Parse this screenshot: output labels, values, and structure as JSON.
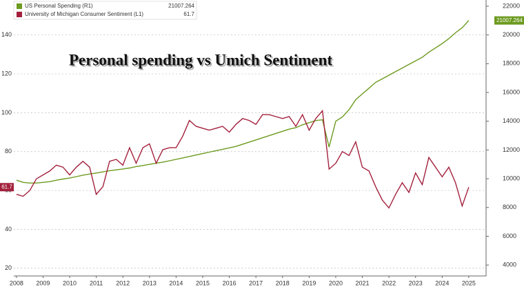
{
  "chart_data": {
    "type": "line",
    "title": "Personal spending vs Umich Sentiment",
    "x": [
      2008.5,
      2008.75,
      2009,
      2009.25,
      2009.5,
      2009.75,
      2010,
      2010.25,
      2010.5,
      2010.75,
      2011,
      2011.25,
      2011.5,
      2011.75,
      2012,
      2012.25,
      2012.5,
      2012.75,
      2013,
      2013.25,
      2013.5,
      2013.75,
      2014,
      2014.25,
      2014.5,
      2014.75,
      2015,
      2015.25,
      2015.5,
      2015.75,
      2016,
      2016.25,
      2016.5,
      2016.75,
      2017,
      2017.25,
      2017.5,
      2017.75,
      2018,
      2018.25,
      2018.5,
      2018.75,
      2019,
      2019.25,
      2019.5,
      2019.75,
      2020,
      2020.25,
      2020.5,
      2020.75,
      2021,
      2021.25,
      2021.5,
      2021.75,
      2022,
      2022.25,
      2022.5,
      2022.75,
      2023,
      2023.25,
      2023.5,
      2023.75,
      2024,
      2024.25,
      2024.5,
      2024.75,
      2025,
      2025.25,
      2025.5
    ],
    "series": [
      {
        "name": "US Personal Spending (R1)",
        "color": "#6c9a1e",
        "axis": "y2",
        "values": [
          9900,
          9750,
          9700,
          9700,
          9750,
          9800,
          9900,
          9980,
          10050,
          10150,
          10250,
          10330,
          10400,
          10480,
          10560,
          10620,
          10680,
          10750,
          10850,
          10920,
          11000,
          11080,
          11150,
          11250,
          11350,
          11450,
          11550,
          11650,
          11750,
          11850,
          11950,
          12050,
          12150,
          12250,
          12400,
          12550,
          12700,
          12850,
          13000,
          13150,
          13300,
          13450,
          13550,
          13750,
          13900,
          14050,
          14100,
          12200,
          14000,
          14300,
          14800,
          15500,
          15900,
          16300,
          16700,
          16950,
          17200,
          17450,
          17700,
          17950,
          18200,
          18450,
          18800,
          19100,
          19400,
          19750,
          20150,
          20500,
          21007.264
        ]
      },
      {
        "name": "University of Michigan Consumer Sentiment (L1)",
        "color": "#a3203c",
        "values": [
          58,
          57,
          60,
          66,
          68,
          70,
          73,
          72,
          68,
          72,
          75,
          72,
          58,
          62,
          75,
          76,
          73,
          82,
          74,
          82,
          84,
          74,
          81,
          82,
          82,
          88,
          96,
          93,
          92,
          91,
          92,
          93,
          90,
          94,
          97,
          96,
          94,
          99,
          99,
          98,
          97,
          98,
          93,
          99,
          91,
          97,
          101,
          71,
          74,
          80,
          78,
          85,
          72,
          70,
          62,
          55,
          51,
          58,
          64,
          59,
          69,
          63,
          77,
          72,
          67,
          72,
          64,
          52,
          61.7
        ]
      }
    ],
    "xlim": [
      2008.4,
      2026.15
    ],
    "xticks": [
      {
        "value": 2008.5,
        "label": "2008"
      },
      {
        "value": 2009.5,
        "label": "2009"
      },
      {
        "value": 2010.5,
        "label": "2010"
      },
      {
        "value": 2011.5,
        "label": "2011"
      },
      {
        "value": 2012.5,
        "label": "2012"
      },
      {
        "value": 2013.5,
        "label": "2013"
      },
      {
        "value": 2014.5,
        "label": "2014"
      },
      {
        "value": 2015.5,
        "label": "2015"
      },
      {
        "value": 2016.5,
        "label": "2016"
      },
      {
        "value": 2017.5,
        "label": "2017"
      },
      {
        "value": 2018.5,
        "label": "2018"
      },
      {
        "value": 2019.5,
        "label": "2019"
      },
      {
        "value": 2020.5,
        "label": "2020"
      },
      {
        "value": 2021.5,
        "label": "2021"
      },
      {
        "value": 2022.5,
        "label": "2022"
      },
      {
        "value": 2023.5,
        "label": "2023"
      },
      {
        "value": 2024.5,
        "label": "2024"
      },
      {
        "value": 2025.5,
        "label": "2025"
      }
    ],
    "ylim": [
      16,
      158
    ],
    "yticks": [
      20,
      40,
      60,
      80,
      100,
      120,
      140
    ],
    "y2lim": [
      3240,
      22430
    ],
    "y2ticks": [
      4000,
      6000,
      8000,
      10000,
      12000,
      14000,
      16000,
      18000,
      20000,
      22000
    ],
    "grid": true
  }
}
